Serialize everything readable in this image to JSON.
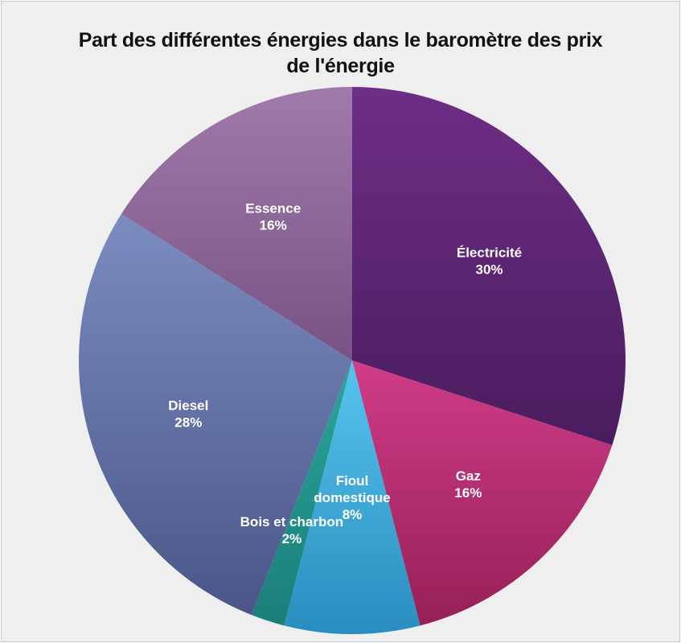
{
  "chart_data": {
    "type": "pie",
    "title_line1": "Part des différentes énergies dans le baromètre des prix",
    "title_line2": "de l'énergie",
    "slices": [
      {
        "label_lines": [
          "Électricité"
        ],
        "pct_text": "30%",
        "value": 30,
        "color_light": "#6e2e86",
        "color_dark": "#4a1c5e"
      },
      {
        "label_lines": [
          "Gaz"
        ],
        "pct_text": "16%",
        "value": 16,
        "color_light": "#d03c88",
        "color_dark": "#962057"
      },
      {
        "label_lines": [
          "Fioul",
          "domestique"
        ],
        "pct_text": "8%",
        "value": 8,
        "color_light": "#56c4ee",
        "color_dark": "#2a8dbf"
      },
      {
        "label_lines": [
          "Bois et charbon"
        ],
        "pct_text": "2%",
        "value": 2,
        "color_light": "#2ba59b",
        "color_dark": "#1a7f78"
      },
      {
        "label_lines": [
          "Diesel"
        ],
        "pct_text": "28%",
        "value": 28,
        "color_light": "#7b8cc0",
        "color_dark": "#4a5688"
      },
      {
        "label_lines": [
          "Essence"
        ],
        "pct_text": "16%",
        "value": 16,
        "color_light": "#a07aab",
        "color_dark": "#775384"
      }
    ]
  }
}
